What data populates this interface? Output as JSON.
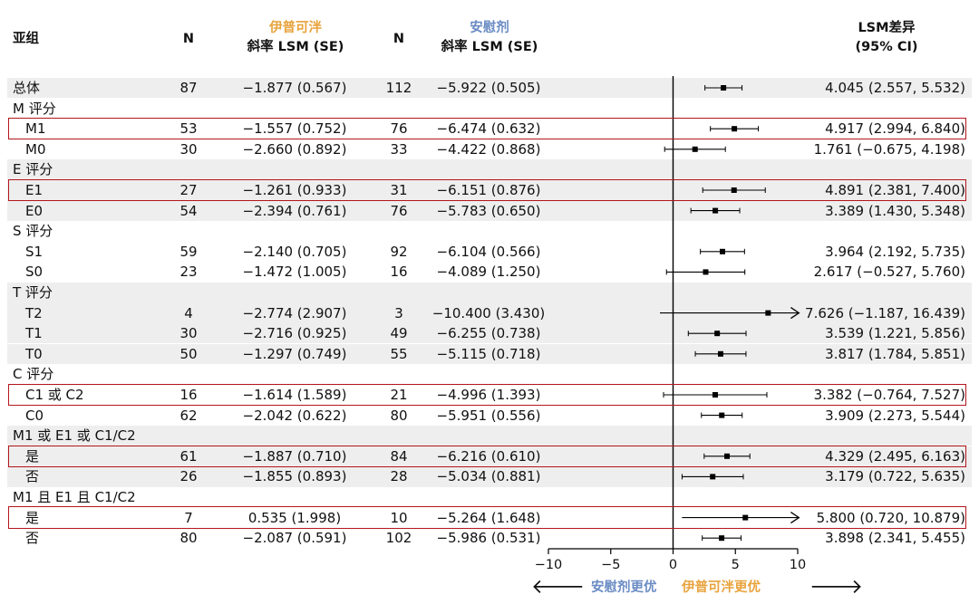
{
  "chart_data": {
    "type": "forest",
    "headers": {
      "subgroup": "亚组",
      "n_drug": "N",
      "drug_name": "伊普可泮",
      "drug_metric": "斜率 LSM (SE)",
      "n_placebo": "N",
      "placebo_name": "安慰剂",
      "placebo_metric": "斜率 LSM (SE)",
      "diff_line1": "LSM差异",
      "diff_line2": "(95% CI)"
    },
    "x_axis": {
      "ticks": [
        "−10",
        "−5",
        "0",
        "5",
        "10"
      ],
      "tick_values": [
        -10,
        -5,
        0,
        5,
        10
      ],
      "range": [
        -10,
        10
      ],
      "left_label": "安慰剂更优",
      "right_label": "伊普可泮更优"
    },
    "colors": {
      "drug": "#e8a33d",
      "placebo": "#6b8cc4",
      "highlight": "#b3161b",
      "band": "#eeeeee"
    },
    "rows": [
      {
        "label": "总体",
        "indent": false,
        "n1": "87",
        "lsm1": "−1.877 (0.567)",
        "n2": "112",
        "lsm2": "−5.922 (0.505)",
        "diff": "4.045 (2.557, 5.532)",
        "est": 4.045,
        "lo": 2.557,
        "hi": 5.532,
        "band": true,
        "hl": false
      },
      {
        "label": "M 评分",
        "header": true,
        "band": false
      },
      {
        "label": "M1",
        "indent": true,
        "n1": "53",
        "lsm1": "−1.557 (0.752)",
        "n2": "76",
        "lsm2": "−6.474 (0.632)",
        "diff": "4.917 (2.994, 6.840)",
        "est": 4.917,
        "lo": 2.994,
        "hi": 6.84,
        "band": false,
        "hl": true
      },
      {
        "label": "M0",
        "indent": true,
        "n1": "30",
        "lsm1": "−2.660 (0.892)",
        "n2": "33",
        "lsm2": "−4.422 (0.868)",
        "diff": "1.761 (−0.675, 4.198)",
        "est": 1.761,
        "lo": -0.675,
        "hi": 4.198,
        "band": false,
        "hl": false
      },
      {
        "label": "E 评分",
        "header": true,
        "band": true
      },
      {
        "label": "E1",
        "indent": true,
        "n1": "27",
        "lsm1": "−1.261 (0.933)",
        "n2": "31",
        "lsm2": "−6.151 (0.876)",
        "diff": "4.891 (2.381, 7.400)",
        "est": 4.891,
        "lo": 2.381,
        "hi": 7.4,
        "band": true,
        "hl": true
      },
      {
        "label": "E0",
        "indent": true,
        "n1": "54",
        "lsm1": "−2.394 (0.761)",
        "n2": "76",
        "lsm2": "−5.783 (0.650)",
        "diff": "3.389 (1.430, 5.348)",
        "est": 3.389,
        "lo": 1.43,
        "hi": 5.348,
        "band": true,
        "hl": false
      },
      {
        "label": "S 评分",
        "header": true,
        "band": false
      },
      {
        "label": "S1",
        "indent": true,
        "n1": "59",
        "lsm1": "−2.140 (0.705)",
        "n2": "92",
        "lsm2": "−6.104 (0.566)",
        "diff": "3.964 (2.192, 5.735)",
        "est": 3.964,
        "lo": 2.192,
        "hi": 5.735,
        "band": false,
        "hl": false
      },
      {
        "label": "S0",
        "indent": true,
        "n1": "23",
        "lsm1": "−1.472 (1.005)",
        "n2": "16",
        "lsm2": "−4.089 (1.250)",
        "diff": "2.617 (−0.527, 5.760)",
        "est": 2.617,
        "lo": -0.527,
        "hi": 5.76,
        "band": false,
        "hl": false
      },
      {
        "label": "T 评分",
        "header": true,
        "band": true
      },
      {
        "label": "T2",
        "indent": true,
        "n1": "4",
        "lsm1": "−2.774 (2.907)",
        "n2": "3",
        "lsm2": "−10.400 (3.430)",
        "diff": "7.626 (−1.187, 16.439)",
        "est": 7.626,
        "lo": -1.187,
        "hi": 16.439,
        "band": true,
        "hl": false
      },
      {
        "label": "T1",
        "indent": true,
        "n1": "30",
        "lsm1": "−2.716 (0.925)",
        "n2": "49",
        "lsm2": "−6.255 (0.738)",
        "diff": "3.539 (1.221, 5.856)",
        "est": 3.539,
        "lo": 1.221,
        "hi": 5.856,
        "band": true,
        "hl": false
      },
      {
        "label": "T0",
        "indent": true,
        "n1": "50",
        "lsm1": "−1.297 (0.749)",
        "n2": "55",
        "lsm2": "−5.115 (0.718)",
        "diff": "3.817 (1.784, 5.851)",
        "est": 3.817,
        "lo": 1.784,
        "hi": 5.851,
        "band": true,
        "hl": false
      },
      {
        "label": "C 评分",
        "header": true,
        "band": false
      },
      {
        "label": "C1 或 C2",
        "indent": true,
        "n1": "16",
        "lsm1": "−1.614 (1.589)",
        "n2": "21",
        "lsm2": "−4.996 (1.393)",
        "diff": "3.382 (−0.764, 7.527)",
        "est": 3.382,
        "lo": -0.764,
        "hi": 7.527,
        "band": false,
        "hl": true
      },
      {
        "label": "C0",
        "indent": true,
        "n1": "62",
        "lsm1": "−2.042 (0.622)",
        "n2": "80",
        "lsm2": "−5.951 (0.556)",
        "diff": "3.909 (2.273, 5.544)",
        "est": 3.909,
        "lo": 2.273,
        "hi": 5.544,
        "band": false,
        "hl": false
      },
      {
        "label": "M1 或 E1 或 C1/C2",
        "header": true,
        "band": true
      },
      {
        "label": "是",
        "indent": true,
        "n1": "61",
        "lsm1": "−1.887 (0.710)",
        "n2": "84",
        "lsm2": "−6.216 (0.610)",
        "diff": "4.329 (2.495, 6.163)",
        "est": 4.329,
        "lo": 2.495,
        "hi": 6.163,
        "band": true,
        "hl": true
      },
      {
        "label": "否",
        "indent": true,
        "n1": "26",
        "lsm1": "−1.855 (0.893)",
        "n2": "28",
        "lsm2": "−5.034 (0.881)",
        "diff": "3.179 (0.722, 5.635)",
        "est": 3.179,
        "lo": 0.722,
        "hi": 5.635,
        "band": true,
        "hl": false
      },
      {
        "label": "M1 且 E1 且 C1/C2",
        "header": true,
        "band": false
      },
      {
        "label": "是",
        "indent": true,
        "n1": "7",
        "lsm1": "0.535 (1.998)",
        "n2": "10",
        "lsm2": "−5.264 (1.648)",
        "diff": "5.800 (0.720, 10.879)",
        "est": 5.8,
        "lo": 0.72,
        "hi": 10.879,
        "band": false,
        "hl": true
      },
      {
        "label": "否",
        "indent": true,
        "n1": "80",
        "lsm1": "−2.087 (0.591)",
        "n2": "102",
        "lsm2": "−5.986 (0.531)",
        "diff": "3.898 (2.341, 5.455)",
        "est": 3.898,
        "lo": 2.341,
        "hi": 5.455,
        "band": false,
        "hl": false
      }
    ]
  }
}
